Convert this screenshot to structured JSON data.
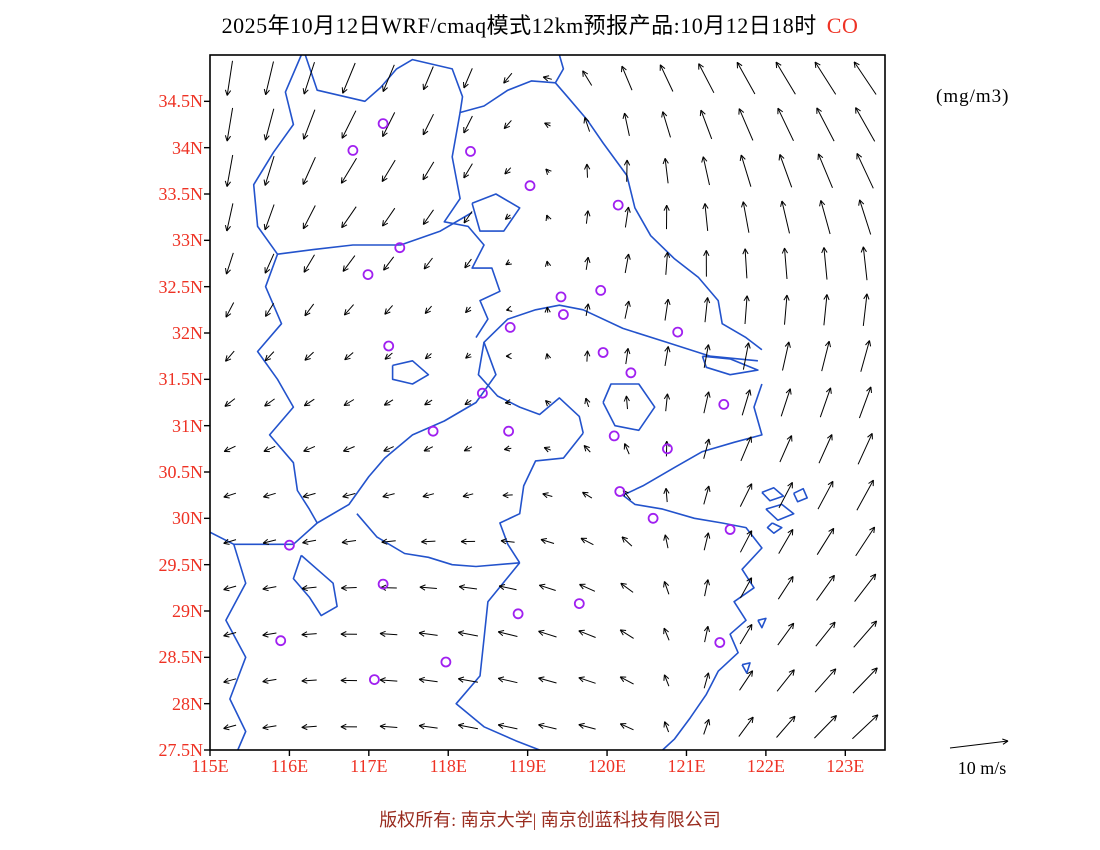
{
  "title": {
    "text": "2025年10月12日WRF/cmaq模式12km预报产品:10月12日18时",
    "species": "CO"
  },
  "units_label": "(mg/m3)",
  "legend": {
    "label": "10 m/s"
  },
  "footer": {
    "copyright": "版权所有: 南京大学| 南京创蓝科技有限公司"
  },
  "colors": {
    "axis_label": "#ee3224",
    "species": "#ee3224",
    "map_line": "#2353cc",
    "station": "#a020f0",
    "wind": "#000000",
    "frame": "#000000",
    "copyright": "#9a2d20"
  },
  "chart_data": {
    "type": "vector_map",
    "title": "2025年10月12日WRF/cmaq模式12km预报产品:10月12日18时",
    "species": "CO",
    "units": "mg/m3",
    "x_axis": {
      "range": [
        115,
        123.5
      ],
      "ticks": [
        {
          "value": 115,
          "label": "115E"
        },
        {
          "value": 116,
          "label": "116E"
        },
        {
          "value": 117,
          "label": "117E"
        },
        {
          "value": 118,
          "label": "118E"
        },
        {
          "value": 119,
          "label": "119E"
        },
        {
          "value": 120,
          "label": "120E"
        },
        {
          "value": 121,
          "label": "121E"
        },
        {
          "value": 122,
          "label": "122E"
        },
        {
          "value": 123,
          "label": "123E"
        }
      ]
    },
    "y_axis": {
      "range": [
        27.5,
        35
      ],
      "ticks": [
        {
          "value": 34.5,
          "label": "34.5N"
        },
        {
          "value": 34,
          "label": "34N"
        },
        {
          "value": 33.5,
          "label": "33.5N"
        },
        {
          "value": 33,
          "label": "33N"
        },
        {
          "value": 32.5,
          "label": "32.5N"
        },
        {
          "value": 32,
          "label": "32N"
        },
        {
          "value": 31.5,
          "label": "31.5N"
        },
        {
          "value": 31,
          "label": "31N"
        },
        {
          "value": 30.5,
          "label": "30.5N"
        },
        {
          "value": 30,
          "label": "30N"
        },
        {
          "value": 29.5,
          "label": "29.5N"
        },
        {
          "value": 29,
          "label": "29N"
        },
        {
          "value": 28.5,
          "label": "28.5N"
        },
        {
          "value": 28,
          "label": "28N"
        },
        {
          "value": 27.5,
          "label": "27.5N"
        }
      ]
    },
    "wind_legend": {
      "speed_ms": 10,
      "label": "10 m/s"
    },
    "wind_field": {
      "lons": [
        115,
        116.7,
        118.4,
        120.1,
        121.8,
        123.5
      ],
      "lats": [
        27.5,
        29,
        30.5,
        32,
        33.5,
        35
      ],
      "u": [
        [
          -3,
          -4,
          -5,
          -4,
          4,
          7
        ],
        [
          -3,
          -4,
          -5,
          -4,
          3,
          6
        ],
        [
          -3,
          -3,
          -2,
          -2,
          3,
          4
        ],
        [
          -2,
          -2,
          -1,
          1,
          1,
          2
        ],
        [
          -1,
          -4,
          -2,
          1,
          -2,
          -4
        ],
        [
          -1,
          -3,
          -2,
          -3,
          -5,
          -6
        ]
      ],
      "v": [
        [
          -1,
          0,
          1,
          1,
          5,
          6
        ],
        [
          -1,
          0,
          1,
          2,
          5,
          7
        ],
        [
          -1,
          -1,
          -1,
          2,
          6,
          8
        ],
        [
          -3,
          -2,
          -1,
          4,
          7,
          8
        ],
        [
          -8,
          -6,
          -3,
          5,
          8,
          9
        ],
        [
          -9,
          -8,
          -5,
          6,
          8,
          8
        ]
      ],
      "arrow_spacing_deg": 0.5
    },
    "stations": [
      [
        117.18,
        34.26
      ],
      [
        116.8,
        33.97
      ],
      [
        118.28,
        33.96
      ],
      [
        119.03,
        33.59
      ],
      [
        120.14,
        33.38
      ],
      [
        117.39,
        32.92
      ],
      [
        116.99,
        32.63
      ],
      [
        119.42,
        32.39
      ],
      [
        119.45,
        32.2
      ],
      [
        119.92,
        32.46
      ],
      [
        118.78,
        32.06
      ],
      [
        120.89,
        32.01
      ],
      [
        119.95,
        31.79
      ],
      [
        120.3,
        31.57
      ],
      [
        117.25,
        31.86
      ],
      [
        121.47,
        31.23
      ],
      [
        118.43,
        31.35
      ],
      [
        117.81,
        30.94
      ],
      [
        118.76,
        30.94
      ],
      [
        120.09,
        30.89
      ],
      [
        120.76,
        30.75
      ],
      [
        120.16,
        30.29
      ],
      [
        120.58,
        30.0
      ],
      [
        121.55,
        29.88
      ],
      [
        116.0,
        29.71
      ],
      [
        117.18,
        29.29
      ],
      [
        119.65,
        29.08
      ],
      [
        118.88,
        28.97
      ],
      [
        117.97,
        28.45
      ],
      [
        121.42,
        28.66
      ],
      [
        115.89,
        28.68
      ],
      [
        117.07,
        28.26
      ]
    ],
    "map_paths": [
      [
        [
          116.2,
          35.0
        ],
        [
          116.35,
          34.62
        ],
        [
          116.95,
          34.5
        ],
        [
          117.15,
          34.65
        ],
        [
          117.35,
          34.85
        ],
        [
          117.55,
          34.95
        ],
        [
          118.05,
          34.85
        ],
        [
          118.18,
          34.55
        ],
        [
          118.15,
          34.38
        ],
        [
          118.45,
          34.45
        ],
        [
          118.75,
          34.62
        ],
        [
          119.05,
          34.72
        ],
        [
          119.35,
          34.7
        ]
      ],
      [
        [
          119.4,
          35.0
        ],
        [
          119.45,
          34.85
        ],
        [
          119.35,
          34.7
        ],
        [
          119.5,
          34.55
        ],
        [
          119.75,
          34.3
        ],
        [
          119.95,
          34.05
        ],
        [
          120.25,
          33.7
        ],
        [
          120.35,
          33.35
        ],
        [
          120.55,
          33.05
        ],
        [
          120.85,
          32.8
        ],
        [
          121.15,
          32.6
        ],
        [
          121.4,
          32.35
        ],
        [
          121.45,
          32.1
        ],
        [
          121.75,
          31.95
        ],
        [
          121.95,
          31.82
        ]
      ],
      [
        [
          121.9,
          31.7
        ],
        [
          121.3,
          31.75
        ],
        [
          120.75,
          31.9
        ],
        [
          120.2,
          32.05
        ],
        [
          119.7,
          32.25
        ],
        [
          119.4,
          32.3
        ],
        [
          119.1,
          32.25
        ],
        [
          118.75,
          32.15
        ],
        [
          118.45,
          31.9
        ],
        [
          118.6,
          31.55
        ],
        [
          118.35,
          31.25
        ],
        [
          117.95,
          31.05
        ],
        [
          117.55,
          30.9
        ],
        [
          117.2,
          30.65
        ],
        [
          117.0,
          30.45
        ],
        [
          116.75,
          30.15
        ],
        [
          116.35,
          29.95
        ],
        [
          116.05,
          29.72
        ],
        [
          115.65,
          29.72
        ],
        [
          115.3,
          29.72
        ],
        [
          115.0,
          29.85
        ]
      ],
      [
        [
          121.2,
          31.75
        ],
        [
          121.55,
          31.72
        ],
        [
          121.9,
          31.6
        ],
        [
          121.55,
          31.55
        ],
        [
          121.25,
          31.63
        ],
        [
          121.2,
          31.75
        ]
      ],
      [
        [
          121.95,
          31.45
        ],
        [
          121.85,
          31.2
        ],
        [
          121.95,
          30.9
        ],
        [
          121.6,
          30.82
        ],
        [
          121.2,
          30.72
        ],
        [
          120.85,
          30.55
        ],
        [
          120.45,
          30.35
        ],
        [
          120.2,
          30.25
        ],
        [
          120.35,
          30.15
        ],
        [
          120.7,
          30.1
        ],
        [
          121.1,
          30.0
        ],
        [
          121.45,
          29.95
        ],
        [
          121.75,
          29.9
        ],
        [
          121.95,
          29.68
        ],
        [
          121.7,
          29.45
        ],
        [
          121.85,
          29.25
        ],
        [
          121.6,
          29.1
        ],
        [
          121.75,
          28.9
        ],
        [
          121.55,
          28.75
        ],
        [
          121.65,
          28.55
        ],
        [
          121.4,
          28.35
        ],
        [
          121.25,
          28.1
        ],
        [
          121.05,
          27.85
        ],
        [
          120.85,
          27.62
        ],
        [
          120.7,
          27.5
        ]
      ],
      [
        [
          116.15,
          35.0
        ],
        [
          115.95,
          34.6
        ],
        [
          116.05,
          34.25
        ],
        [
          115.8,
          33.95
        ],
        [
          115.55,
          33.6
        ],
        [
          115.6,
          33.15
        ],
        [
          115.85,
          32.85
        ],
        [
          115.7,
          32.5
        ],
        [
          115.9,
          32.1
        ],
        [
          115.6,
          31.8
        ],
        [
          115.85,
          31.5
        ],
        [
          116.05,
          31.2
        ],
        [
          115.75,
          30.9
        ],
        [
          116.05,
          30.6
        ],
        [
          116.1,
          30.3
        ],
        [
          116.25,
          30.1
        ],
        [
          116.35,
          29.95
        ]
      ],
      [
        [
          118.15,
          34.38
        ],
        [
          118.05,
          33.9
        ],
        [
          118.15,
          33.45
        ],
        [
          117.95,
          33.2
        ],
        [
          118.25,
          33.15
        ],
        [
          118.45,
          32.95
        ],
        [
          118.3,
          32.7
        ],
        [
          118.55,
          32.7
        ],
        [
          118.65,
          32.45
        ],
        [
          118.4,
          32.35
        ],
        [
          118.5,
          32.15
        ],
        [
          118.35,
          31.95
        ]
      ],
      [
        [
          118.45,
          31.9
        ],
        [
          118.38,
          31.55
        ],
        [
          118.62,
          31.32
        ],
        [
          118.9,
          31.2
        ],
        [
          119.15,
          31.12
        ],
        [
          119.4,
          31.3
        ],
        [
          119.65,
          31.1
        ],
        [
          119.7,
          30.92
        ]
      ],
      [
        [
          119.7,
          30.92
        ],
        [
          119.45,
          30.65
        ],
        [
          119.1,
          30.62
        ],
        [
          118.95,
          30.35
        ],
        [
          118.9,
          30.05
        ],
        [
          118.65,
          29.95
        ],
        [
          118.75,
          29.72
        ],
        [
          118.9,
          29.52
        ]
      ],
      [
        [
          116.85,
          30.05
        ],
        [
          117.1,
          29.8
        ],
        [
          117.45,
          29.62
        ],
        [
          117.75,
          29.58
        ],
        [
          118.05,
          29.5
        ],
        [
          118.35,
          29.48
        ],
        [
          118.9,
          29.52
        ]
      ],
      [
        [
          118.9,
          29.52
        ],
        [
          118.5,
          29.1
        ],
        [
          118.45,
          28.7
        ],
        [
          118.4,
          28.3
        ],
        [
          118.1,
          28.0
        ],
        [
          118.45,
          27.75
        ],
        [
          118.85,
          27.6
        ],
        [
          119.15,
          27.5
        ]
      ],
      [
        [
          115.3,
          29.72
        ],
        [
          115.45,
          29.3
        ],
        [
          115.2,
          28.9
        ],
        [
          115.45,
          28.5
        ],
        [
          115.25,
          28.05
        ],
        [
          115.45,
          27.7
        ],
        [
          115.35,
          27.5
        ]
      ],
      [
        [
          116.15,
          29.6
        ],
        [
          116.35,
          29.45
        ],
        [
          116.55,
          29.3
        ],
        [
          116.6,
          29.05
        ],
        [
          116.4,
          28.95
        ],
        [
          116.25,
          29.15
        ],
        [
          116.05,
          29.35
        ],
        [
          116.15,
          29.6
        ]
      ],
      [
        [
          118.3,
          33.4
        ],
        [
          118.6,
          33.5
        ],
        [
          118.9,
          33.35
        ],
        [
          118.7,
          33.1
        ],
        [
          118.4,
          33.1
        ],
        [
          118.3,
          33.4
        ]
      ],
      [
        [
          119.95,
          31.25
        ],
        [
          120.05,
          31.45
        ],
        [
          120.4,
          31.45
        ],
        [
          120.6,
          31.2
        ],
        [
          120.4,
          30.95
        ],
        [
          120.1,
          31.0
        ],
        [
          119.95,
          31.25
        ]
      ],
      [
        [
          117.3,
          31.65
        ],
        [
          117.55,
          31.7
        ],
        [
          117.75,
          31.55
        ],
        [
          117.55,
          31.45
        ],
        [
          117.3,
          31.5
        ],
        [
          117.3,
          31.65
        ]
      ],
      [
        [
          115.85,
          32.85
        ],
        [
          116.3,
          32.9
        ],
        [
          116.8,
          32.95
        ],
        [
          117.4,
          32.95
        ],
        [
          117.9,
          33.1
        ],
        [
          118.3,
          33.3
        ]
      ],
      [
        [
          122.0,
          30.1
        ],
        [
          122.2,
          30.15
        ],
        [
          122.35,
          30.05
        ],
        [
          122.15,
          29.98
        ],
        [
          122.0,
          30.1
        ]
      ],
      [
        [
          121.95,
          30.28
        ],
        [
          122.1,
          30.33
        ],
        [
          122.22,
          30.24
        ],
        [
          122.05,
          30.19
        ],
        [
          121.95,
          30.28
        ]
      ],
      [
        [
          122.35,
          30.27
        ],
        [
          122.47,
          30.32
        ],
        [
          122.52,
          30.22
        ],
        [
          122.4,
          30.18
        ],
        [
          122.35,
          30.27
        ]
      ],
      [
        [
          122.08,
          29.95
        ],
        [
          122.2,
          29.9
        ],
        [
          122.1,
          29.84
        ],
        [
          122.02,
          29.9
        ],
        [
          122.08,
          29.95
        ]
      ],
      [
        [
          121.9,
          28.9
        ],
        [
          122.0,
          28.92
        ],
        [
          121.95,
          28.82
        ],
        [
          121.9,
          28.9
        ]
      ],
      [
        [
          121.7,
          28.42
        ],
        [
          121.8,
          28.44
        ],
        [
          121.76,
          28.33
        ],
        [
          121.7,
          28.42
        ]
      ]
    ]
  }
}
